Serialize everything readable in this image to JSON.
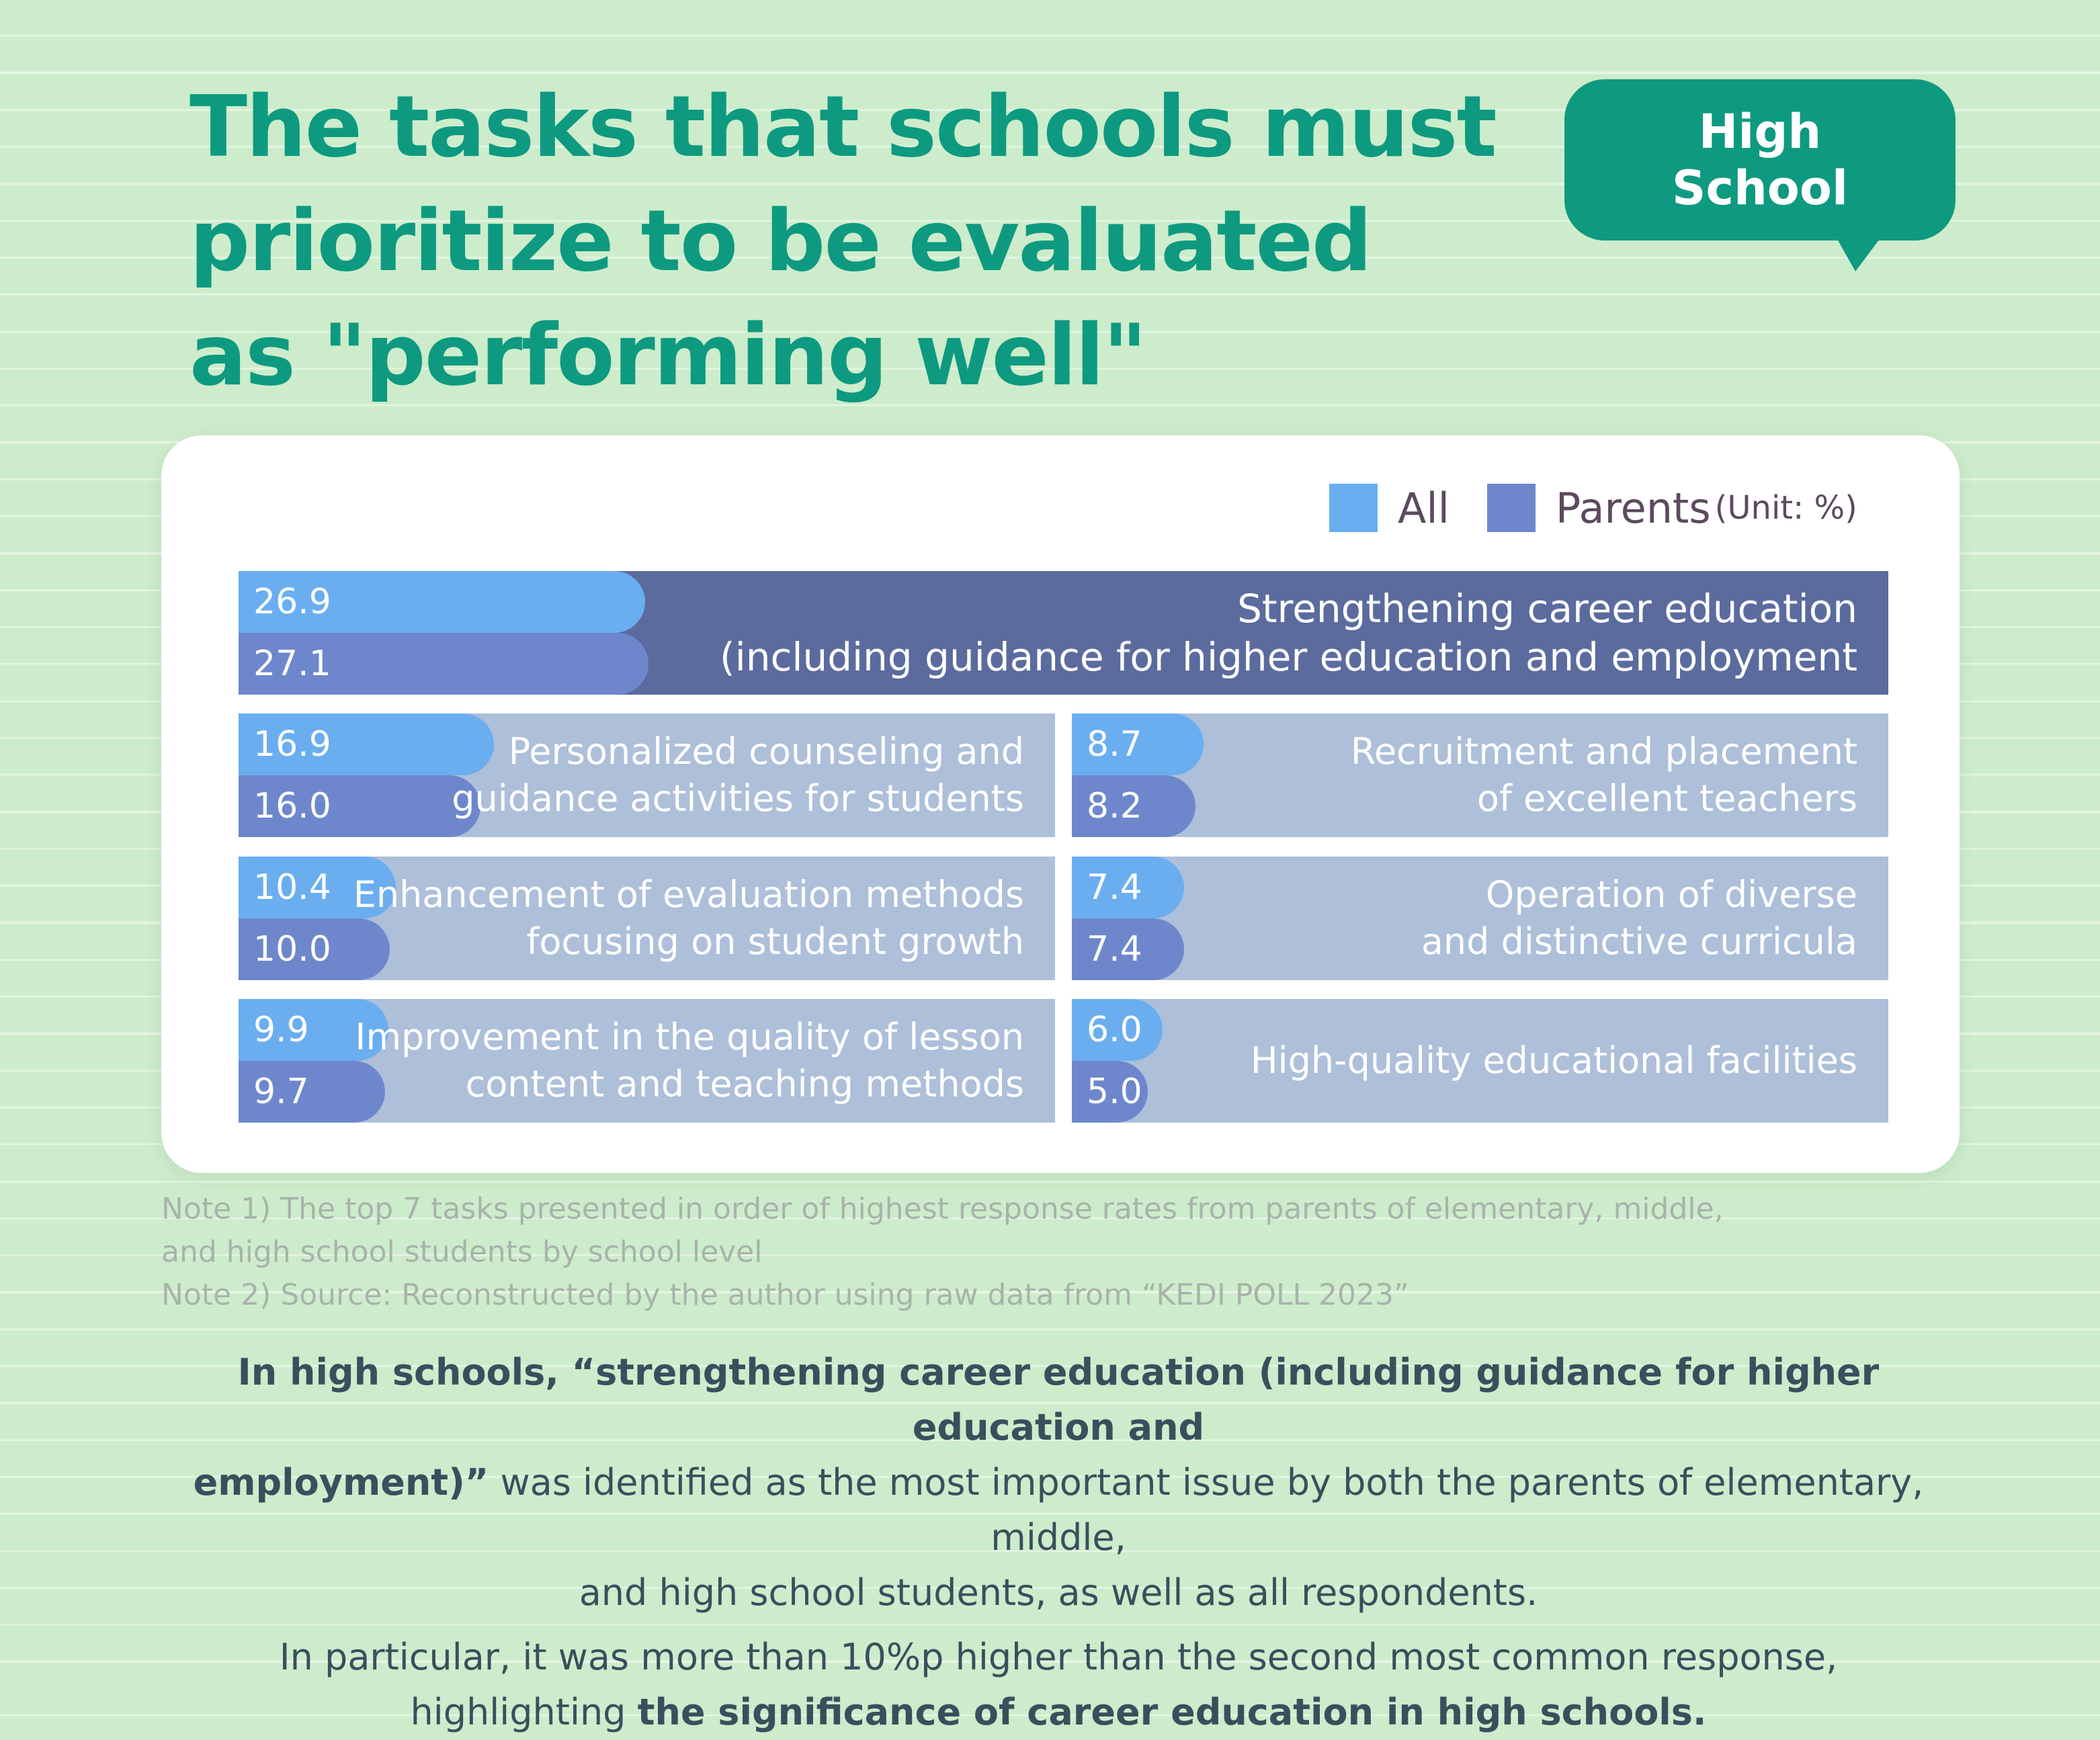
{
  "title_lines": [
    "The tasks that schools must",
    "prioritize to be evaluated",
    "as \"performing well\""
  ],
  "badge_lines": [
    "High",
    "School"
  ],
  "colors": {
    "all": "#6aaef0",
    "parents": "#6e87cc",
    "accent": "#0e9a80"
  },
  "chart_data": {
    "type": "bar",
    "orientation": "horizontal",
    "legend": [
      "All",
      "Parents"
    ],
    "unit_note": "(Unit: %)",
    "legend_position": "top-right",
    "categories": [
      "Strengthening career education (including guidance for higher education and employment",
      "Personalized counseling and guidance activities for students",
      "Recruitment and placement of excellent teachers",
      "Enhancement of evaluation methods focusing on student growth",
      "Operation of diverse and distinctive curricula",
      "Improvement in the quality of lesson content and teaching methods",
      "High-quality educational facilities"
    ],
    "category_lines": [
      [
        "Strengthening career education",
        "(including guidance for higher education and employment"
      ],
      [
        "Personalized counseling and",
        "guidance activities for students"
      ],
      [
        "Recruitment and placement",
        "of excellent teachers"
      ],
      [
        "Enhancement of evaluation methods",
        "focusing on student growth"
      ],
      [
        "Operation of diverse",
        "and distinctive curricula"
      ],
      [
        "Improvement in the quality of lesson",
        "content and teaching methods"
      ],
      [
        "High-quality educational facilities"
      ]
    ],
    "series": [
      {
        "name": "All",
        "values": [
          26.9,
          16.9,
          8.7,
          10.4,
          7.4,
          9.9,
          6.0
        ],
        "labels": [
          "26.9",
          "16.9",
          "8.7",
          "10.4",
          "7.4",
          "9.9",
          "6.0"
        ]
      },
      {
        "name": "Parents",
        "values": [
          27.1,
          16.0,
          8.2,
          10.0,
          7.4,
          9.7,
          5.0
        ],
        "labels": [
          "27.1",
          "16.0",
          "8.2",
          "10.0",
          "7.4",
          "9.7",
          "5.0"
        ]
      }
    ]
  },
  "notes": [
    "Note 1) The top 7 tasks presented in order of highest response rates from parents of elementary, middle,",
    "and high school students by school level",
    "Note 2) Source: Reconstructed by the author using raw data from “KEDI POLL 2023”"
  ],
  "summary": {
    "line1_bold": "In high schools, “strengthening career education (including guidance for higher education and",
    "line2_bold": "employment)”",
    "line2_rest": "  was identified as the most important issue by both the parents of elementary, middle,",
    "line3": "and high school students, as well as all respondents.",
    "line4": "In particular, it was more than 10%p higher than the second most common response,",
    "line5_plain": "highlighting ",
    "line5_bold": "the significance of career education in high schools."
  }
}
